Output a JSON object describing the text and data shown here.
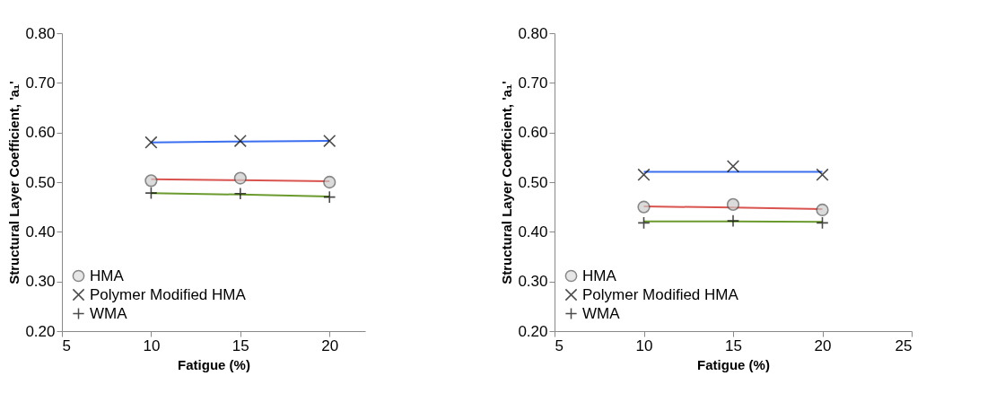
{
  "chart_data": [
    {
      "type": "scatter",
      "xlabel": "Fatigue (%)",
      "ylabel": "Structural Layer Coefficient, 'a₁'",
      "x": [
        10,
        15,
        20
      ],
      "xlim": [
        5,
        22
      ],
      "xticks": [
        5,
        10,
        15,
        20
      ],
      "ylim": [
        0.2,
        0.8
      ],
      "yticks": [
        {
          "value": 0.2,
          "label": "0.20"
        },
        {
          "value": 0.3,
          "label": "0.30"
        },
        {
          "value": 0.4,
          "label": "0.40"
        },
        {
          "value": 0.5,
          "label": "0.50"
        },
        {
          "value": 0.6,
          "label": "0.60"
        },
        {
          "value": 0.7,
          "label": "0.70"
        },
        {
          "value": 0.8,
          "label": "0.80"
        }
      ],
      "grid": false,
      "legend": "bottom left",
      "series": [
        {
          "name": "HMA",
          "marker": "circle",
          "color": "#cccccc",
          "values": [
            0.503,
            0.508,
            0.5
          ]
        },
        {
          "name": "Polymer Modified HMA",
          "marker": "cross",
          "color": "#000000",
          "values": [
            0.58,
            0.583,
            0.583
          ]
        },
        {
          "name": "WMA",
          "marker": "plus",
          "color": "#000000",
          "values": [
            0.478,
            0.477,
            0.47
          ]
        },
        {
          "type": "line",
          "color": "#d9534f",
          "values": [
            0.506,
            0.504,
            0.502
          ]
        },
        {
          "type": "line",
          "color": "#3b6ff0",
          "values": [
            0.58,
            0.582,
            0.583
          ]
        },
        {
          "type": "line",
          "color": "#6b9a2e",
          "values": [
            0.478,
            0.475,
            0.471
          ]
        }
      ]
    },
    {
      "type": "scatter",
      "xlabel": "Fatigue (%)",
      "ylabel": "Structural Layer Coefficient, 'a₁'",
      "x": [
        10,
        15,
        20
      ],
      "xlim": [
        5,
        25
      ],
      "xticks": [
        5,
        10,
        15,
        20,
        25
      ],
      "ylim": [
        0.2,
        0.8
      ],
      "yticks": [
        {
          "value": 0.2,
          "label": "0.20"
        },
        {
          "value": 0.3,
          "label": "0.30"
        },
        {
          "value": 0.4,
          "label": "0.40"
        },
        {
          "value": 0.5,
          "label": "0.50"
        },
        {
          "value": 0.6,
          "label": "0.60"
        },
        {
          "value": 0.7,
          "label": "0.70"
        },
        {
          "value": 0.8,
          "label": "0.80"
        }
      ],
      "grid": false,
      "legend": "bottom left",
      "series": [
        {
          "name": "HMA",
          "marker": "circle",
          "color": "#cccccc",
          "values": [
            0.45,
            0.455,
            0.444
          ]
        },
        {
          "name": "Polymer Modified HMA",
          "marker": "cross",
          "color": "#000000",
          "values": [
            0.515,
            0.532,
            0.515
          ]
        },
        {
          "name": "WMA",
          "marker": "plus",
          "color": "#000000",
          "values": [
            0.418,
            0.422,
            0.418
          ]
        },
        {
          "type": "line",
          "color": "#3b6ff0",
          "values": [
            0.521,
            0.521,
            0.521
          ]
        },
        {
          "type": "line",
          "color": "#d9534f",
          "values": [
            0.451,
            0.449,
            0.446
          ]
        },
        {
          "type": "line",
          "color": "#6b9a2e",
          "values": [
            0.421,
            0.421,
            0.42
          ]
        }
      ]
    }
  ]
}
